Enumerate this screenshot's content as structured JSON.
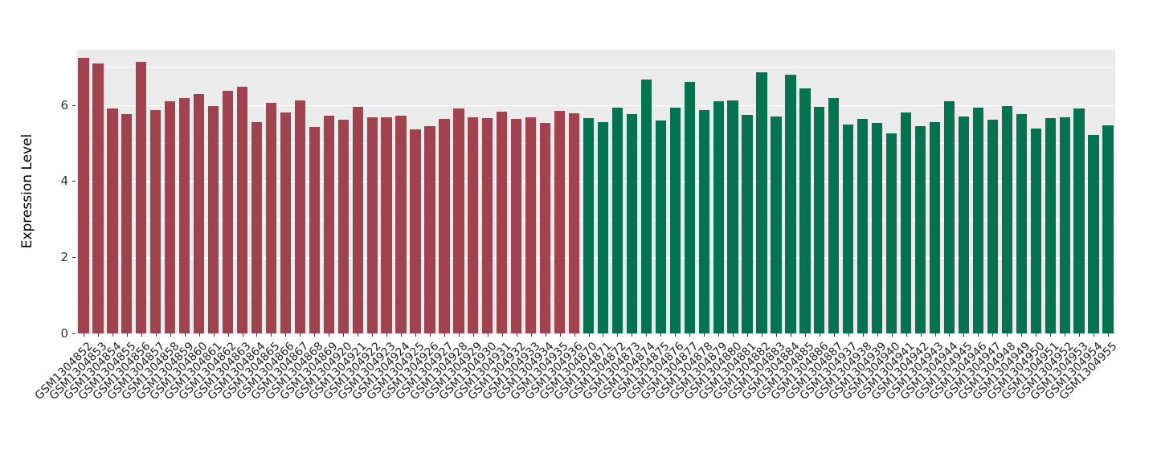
{
  "chart_data": {
    "type": "bar",
    "title": "",
    "xlabel": "",
    "ylabel": "Expression Level",
    "ylim": [
      0,
      7.45
    ],
    "yticks": [
      0,
      2,
      4,
      6
    ],
    "grid": "major-and-minor-white-on-gray",
    "legend": false,
    "colors": {
      "panel_bg": "#EBEBEB",
      "grid_major": "#FFFFFF",
      "grid_minor": "#FFFFFF",
      "axis_text": "#333333"
    },
    "series": [
      {
        "name": "group_red",
        "color": "#A0434F",
        "categories": [
          "GSM1304852",
          "GSM1304853",
          "GSM1304854",
          "GSM1304855",
          "GSM1304856",
          "GSM1304857",
          "GSM1304858",
          "GSM1304859",
          "GSM1304860",
          "GSM1304861",
          "GSM1304862",
          "GSM1304863",
          "GSM1304864",
          "GSM1304865",
          "GSM1304866",
          "GSM1304867",
          "GSM1304868",
          "GSM1304869",
          "GSM1304920",
          "GSM1304921",
          "GSM1304922",
          "GSM1304923",
          "GSM1304924",
          "GSM1304925",
          "GSM1304926",
          "GSM1304927",
          "GSM1304928",
          "GSM1304929",
          "GSM1304930",
          "GSM1304931",
          "GSM1304932",
          "GSM1304933",
          "GSM1304934",
          "GSM1304935",
          "GSM1304936"
        ],
        "values": [
          7.24,
          7.09,
          5.92,
          5.77,
          7.13,
          5.87,
          6.09,
          6.19,
          6.3,
          5.98,
          6.38,
          6.49,
          5.55,
          6.06,
          5.81,
          6.13,
          5.42,
          5.72,
          5.62,
          5.96,
          5.68,
          5.68,
          5.72,
          5.36,
          5.45,
          5.64,
          5.92,
          5.68,
          5.66,
          5.83,
          5.64,
          5.68,
          5.53,
          5.85,
          5.79
        ]
      },
      {
        "name": "group_green",
        "color": "#067350",
        "categories": [
          "GSM1304870",
          "GSM1304871",
          "GSM1304872",
          "GSM1304873",
          "GSM1304874",
          "GSM1304875",
          "GSM1304876",
          "GSM1304877",
          "GSM1304878",
          "GSM1304879",
          "GSM1304880",
          "GSM1304881",
          "GSM1304882",
          "GSM1304883",
          "GSM1304884",
          "GSM1304885",
          "GSM1304886",
          "GSM1304887",
          "GSM1304937",
          "GSM1304938",
          "GSM1304939",
          "GSM1304940",
          "GSM1304941",
          "GSM1304942",
          "GSM1304943",
          "GSM1304944",
          "GSM1304945",
          "GSM1304946",
          "GSM1304947",
          "GSM1304948",
          "GSM1304949",
          "GSM1304950",
          "GSM1304951",
          "GSM1304952",
          "GSM1304953",
          "GSM1304954",
          "GSM1304955"
        ],
        "values": [
          5.65,
          5.55,
          5.93,
          5.77,
          6.66,
          5.59,
          5.94,
          6.6,
          5.87,
          6.09,
          6.13,
          5.74,
          6.85,
          5.7,
          6.79,
          6.43,
          5.96,
          6.19,
          5.49,
          5.64,
          5.53,
          5.25,
          5.81,
          5.45,
          5.55,
          6.11,
          5.7,
          5.94,
          5.62,
          5.98,
          5.77,
          5.38,
          5.66,
          5.68,
          5.92,
          5.21,
          5.47
        ]
      }
    ]
  }
}
